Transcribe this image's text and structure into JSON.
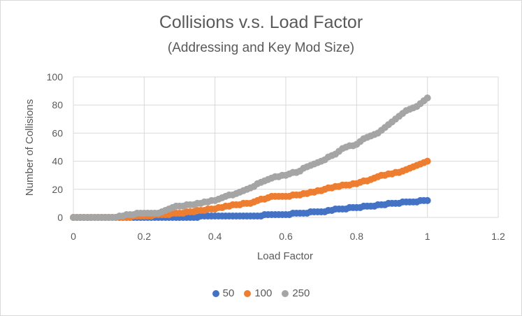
{
  "chart_data": {
    "type": "scatter",
    "title": "Collisions v.s. Load Factor",
    "subtitle": "(Addressing and Key Mod Size)",
    "xlabel": "Load Factor",
    "ylabel": "Number of Collisions",
    "xlim": [
      0,
      1.2
    ],
    "ylim": [
      0,
      100
    ],
    "x_ticks": [
      "0",
      "0.2",
      "0.4",
      "0.6",
      "0.8",
      "1",
      "1.2"
    ],
    "y_ticks": [
      "0",
      "20",
      "40",
      "60",
      "80",
      "100"
    ],
    "x_tick_values": [
      0,
      0.2,
      0.4,
      0.6,
      0.8,
      1.0,
      1.2
    ],
    "y_tick_values": [
      0,
      20,
      40,
      60,
      80,
      100
    ],
    "grid": true,
    "legend_position": "bottom",
    "series": [
      {
        "name": "50",
        "color": "#4472C4",
        "points": [
          [
            0,
            0
          ],
          [
            0.1,
            0
          ],
          [
            0.2,
            0
          ],
          [
            0.3,
            0
          ],
          [
            0.36,
            0.5
          ],
          [
            0.4,
            1
          ],
          [
            0.5,
            1
          ],
          [
            0.54,
            1.5
          ],
          [
            0.6,
            2
          ],
          [
            0.64,
            3
          ],
          [
            0.7,
            4
          ],
          [
            0.74,
            5.5
          ],
          [
            0.8,
            7
          ],
          [
            0.86,
            8.5
          ],
          [
            0.9,
            10
          ],
          [
            0.95,
            11
          ],
          [
            1.0,
            12
          ]
        ]
      },
      {
        "name": "100",
        "color": "#ED7D31",
        "points": [
          [
            0,
            0
          ],
          [
            0.14,
            0
          ],
          [
            0.2,
            1
          ],
          [
            0.26,
            2
          ],
          [
            0.3,
            3
          ],
          [
            0.34,
            4
          ],
          [
            0.36,
            5
          ],
          [
            0.4,
            6
          ],
          [
            0.46,
            9
          ],
          [
            0.5,
            10
          ],
          [
            0.52,
            12
          ],
          [
            0.54,
            13
          ],
          [
            0.56,
            15
          ],
          [
            0.6,
            15
          ],
          [
            0.64,
            16
          ],
          [
            0.7,
            19
          ],
          [
            0.74,
            22
          ],
          [
            0.8,
            24
          ],
          [
            0.84,
            27
          ],
          [
            0.86,
            29
          ],
          [
            0.9,
            31
          ],
          [
            0.93,
            33
          ],
          [
            0.96,
            36
          ],
          [
            1.0,
            40
          ]
        ]
      },
      {
        "name": "250",
        "color": "#A5A5A5",
        "points": [
          [
            0,
            0
          ],
          [
            0.12,
            0
          ],
          [
            0.16,
            2
          ],
          [
            0.2,
            3
          ],
          [
            0.24,
            3
          ],
          [
            0.28,
            7
          ],
          [
            0.3,
            8
          ],
          [
            0.36,
            10
          ],
          [
            0.4,
            12
          ],
          [
            0.42,
            14
          ],
          [
            0.46,
            17
          ],
          [
            0.5,
            21
          ],
          [
            0.53,
            25
          ],
          [
            0.56,
            28
          ],
          [
            0.6,
            30
          ],
          [
            0.64,
            33
          ],
          [
            0.66,
            36
          ],
          [
            0.7,
            40
          ],
          [
            0.74,
            45
          ],
          [
            0.76,
            49
          ],
          [
            0.8,
            52
          ],
          [
            0.82,
            56
          ],
          [
            0.86,
            60
          ],
          [
            0.88,
            64
          ],
          [
            0.9,
            68
          ],
          [
            0.92,
            72
          ],
          [
            0.94,
            76
          ],
          [
            0.97,
            79
          ],
          [
            1.0,
            85
          ]
        ]
      }
    ]
  }
}
